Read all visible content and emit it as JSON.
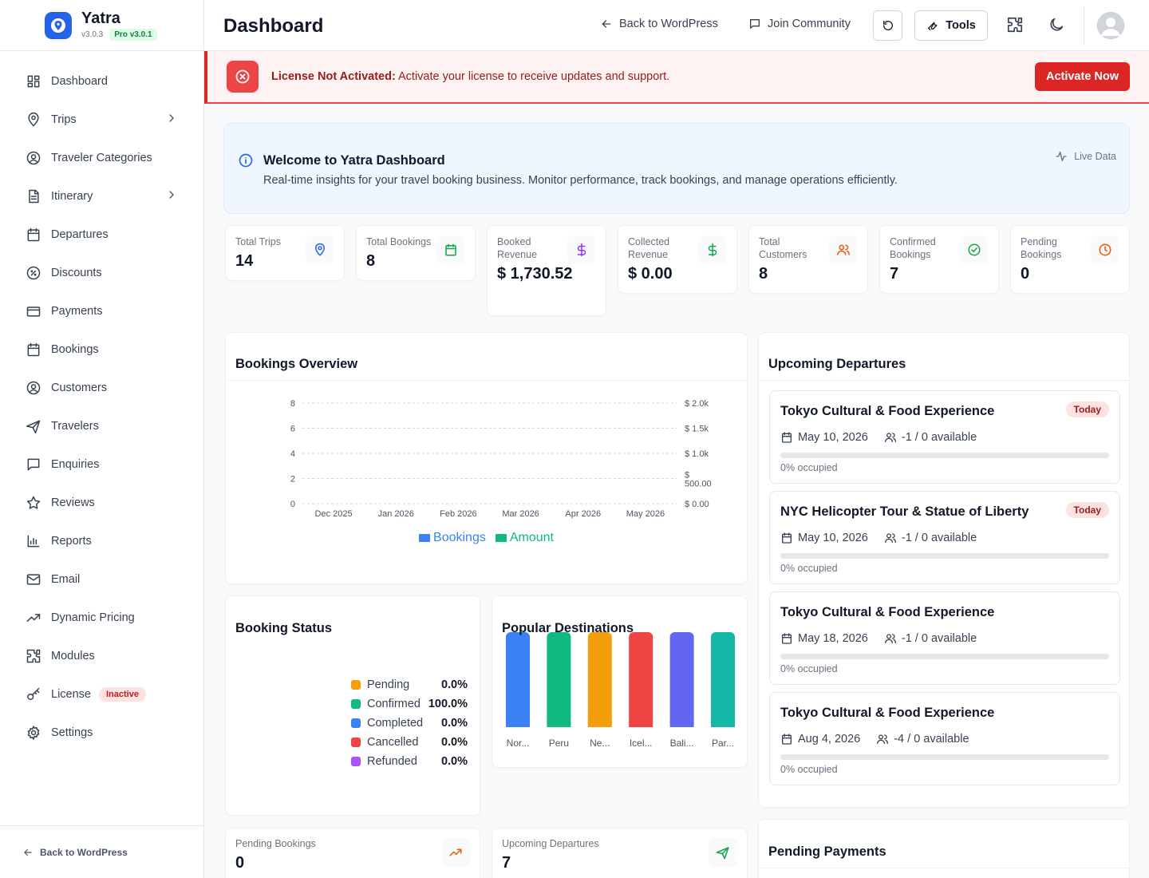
{
  "brand": {
    "name": "Yatra",
    "version": "v3.0.3",
    "pro": "Pro v3.0.1"
  },
  "sidebar": {
    "items": [
      {
        "label": "Dashboard",
        "icon": "dashboard-icon"
      },
      {
        "label": "Trips",
        "icon": "map-pin-icon",
        "chevron": true
      },
      {
        "label": "Traveler Categories",
        "icon": "user-circle-icon"
      },
      {
        "label": "Itinerary",
        "icon": "document-icon",
        "chevron": true
      },
      {
        "label": "Departures",
        "icon": "calendar-icon"
      },
      {
        "label": "Discounts",
        "icon": "discount-icon"
      },
      {
        "label": "Payments",
        "icon": "credit-card-icon"
      },
      {
        "label": "Bookings",
        "icon": "calendar-icon"
      },
      {
        "label": "Customers",
        "icon": "user-circle-icon"
      },
      {
        "label": "Travelers",
        "icon": "plane-icon"
      },
      {
        "label": "Enquiries",
        "icon": "message-icon"
      },
      {
        "label": "Reviews",
        "icon": "star-icon"
      },
      {
        "label": "Reports",
        "icon": "bar-chart-icon"
      },
      {
        "label": "Email",
        "icon": "mail-icon"
      },
      {
        "label": "Dynamic Pricing",
        "icon": "trending-up-icon"
      },
      {
        "label": "Modules",
        "icon": "puzzle-icon"
      },
      {
        "label": "License",
        "icon": "key-icon",
        "badge": "Inactive"
      },
      {
        "label": "Settings",
        "icon": "gear-icon"
      }
    ],
    "footer": "Back to WordPress"
  },
  "header": {
    "title": "Dashboard",
    "back": "Back to WordPress",
    "community": "Join Community",
    "tools": "Tools"
  },
  "alert": {
    "bold": "License Not Activated:",
    "text": " Activate your license to receive updates and support.",
    "button": "Activate Now"
  },
  "welcome": {
    "title": "Welcome to Yatra Dashboard",
    "subtitle": "Real-time insights for your travel booking business. Monitor performance, track bookings, and manage operations efficiently.",
    "live": "Live Data"
  },
  "stats": [
    {
      "label": "Total Trips",
      "value": "14",
      "icon": "map-pin-icon",
      "color": "#2563eb"
    },
    {
      "label": "Total Bookings",
      "value": "8",
      "icon": "calendar-icon",
      "color": "#16a34a"
    },
    {
      "label": "Booked Revenue",
      "value": "$ 1,730.52",
      "icon": "dollar-icon",
      "color": "#9333ea"
    },
    {
      "label": "Collected Revenue",
      "value": "$ 0.00",
      "icon": "dollar-icon",
      "color": "#16a34a"
    },
    {
      "label": "Total Customers",
      "value": "8",
      "icon": "users-icon",
      "color": "#ea580c"
    },
    {
      "label": "Confirmed Bookings",
      "value": "7",
      "icon": "check-circle-icon",
      "color": "#16a34a"
    },
    {
      "label": "Pending Bookings",
      "value": "0",
      "icon": "clock-icon",
      "color": "#ea580c"
    }
  ],
  "bookings_overview": {
    "title": "Bookings Overview"
  },
  "chart_data": [
    {
      "type": "line",
      "categories": [
        "Dec 2025",
        "Jan 2026",
        "Feb 2026",
        "Mar 2026",
        "Apr 2026",
        "May 2026"
      ],
      "series": [
        {
          "name": "Bookings",
          "values": [
            0,
            0,
            0,
            0,
            0,
            0
          ],
          "color": "#3b82f6"
        },
        {
          "name": "Amount",
          "values": [
            0,
            0,
            0,
            0,
            0,
            0
          ],
          "color": "#10b981"
        }
      ],
      "y_left": {
        "ticks": [
          "0",
          "2",
          "4",
          "6",
          "8"
        ],
        "lim": [
          0,
          8
        ]
      },
      "y_right": {
        "ticks": [
          "$ 0.00",
          "$ 500.00",
          "$ 1.0k",
          "$ 1.5k",
          "$ 2.0k"
        ],
        "lim": [
          0,
          2000
        ]
      },
      "grid": true,
      "legend": "bottom"
    },
    {
      "type": "bar",
      "title": "Popular Destinations",
      "categories": [
        "Nor...",
        "Peru",
        "Ne...",
        "Icel...",
        "Bali...",
        "Par..."
      ],
      "values": [
        1,
        1,
        1,
        1,
        1,
        1
      ],
      "colors": [
        "#3b82f6",
        "#10b981",
        "#f59e0b",
        "#ef4444",
        "#6366f1",
        "#14b8a6"
      ]
    }
  ],
  "booking_status": {
    "title": "Booking Status",
    "items": [
      {
        "label": "Pending",
        "pct": "0.0%",
        "color": "#f59e0b"
      },
      {
        "label": "Confirmed",
        "pct": "100.0%",
        "color": "#10b981"
      },
      {
        "label": "Completed",
        "pct": "0.0%",
        "color": "#3b82f6"
      },
      {
        "label": "Cancelled",
        "pct": "0.0%",
        "color": "#ef4444"
      },
      {
        "label": "Refunded",
        "pct": "0.0%",
        "color": "#a855f7"
      }
    ]
  },
  "popular": {
    "title": "Popular Destinations"
  },
  "departures": {
    "title": "Upcoming Departures",
    "items": [
      {
        "name": "Tokyo Cultural & Food Experience",
        "date": "May 10, 2026",
        "avail": "-1 / 0 available",
        "occ": "0% occupied",
        "badge": "Today",
        "occupancy": 0
      },
      {
        "name": "NYC Helicopter Tour & Statue of Liberty",
        "date": "May 10, 2026",
        "avail": "-1 / 0 available",
        "occ": "0% occupied",
        "badge": "Today",
        "occupancy": 0
      },
      {
        "name": "Tokyo Cultural & Food Experience",
        "date": "May 18, 2026",
        "avail": "-1 / 0 available",
        "occ": "0% occupied",
        "badge": "",
        "occupancy": 0
      },
      {
        "name": "Tokyo Cultural & Food Experience",
        "date": "Aug 4, 2026",
        "avail": "-4 / 0 available",
        "occ": "0% occupied",
        "badge": "",
        "occupancy": 0
      }
    ]
  },
  "mini": [
    {
      "label": "Pending Bookings",
      "value": "0"
    },
    {
      "label": "Upcoming Departures",
      "value": "7"
    }
  ],
  "pending_payments": {
    "title": "Pending Payments"
  }
}
